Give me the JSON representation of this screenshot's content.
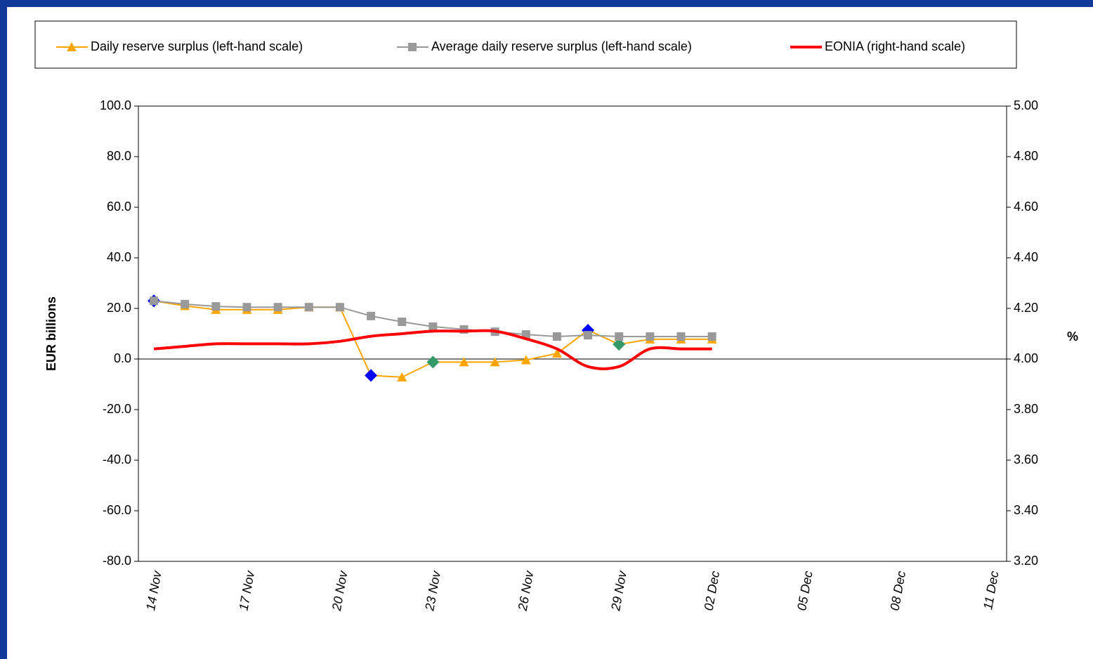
{
  "chart_data": {
    "type": "line",
    "y_label": "EUR billions",
    "y2_label": "%",
    "categories": [
      "14 Nov",
      null,
      null,
      "17 Nov",
      null,
      null,
      "20 Nov",
      null,
      null,
      "23 Nov",
      null,
      null,
      "26 Nov",
      null,
      null,
      "29 Nov",
      null,
      null,
      "02 Dec",
      null,
      null,
      "05 Dec",
      null,
      null,
      "08 Dec",
      null,
      null,
      "11 Dec"
    ],
    "ylim": [
      -80,
      100
    ],
    "yticks": [
      {
        "value": -80,
        "label": "-80.0"
      },
      {
        "value": -60,
        "label": "-60.0"
      },
      {
        "value": -40,
        "label": "-40.0"
      },
      {
        "value": -20,
        "label": "-20.0"
      },
      {
        "value": 0,
        "label": "0.0"
      },
      {
        "value": 20,
        "label": "20.0"
      },
      {
        "value": 40,
        "label": "40.0"
      },
      {
        "value": 60,
        "label": "60.0"
      },
      {
        "value": 80,
        "label": "80.0"
      },
      {
        "value": 100,
        "label": "100.0"
      }
    ],
    "y2lim": [
      3.2,
      5.0
    ],
    "y2ticks": [
      {
        "value": 3.2,
        "label": "3.20"
      },
      {
        "value": 3.4,
        "label": "3.40"
      },
      {
        "value": 3.6,
        "label": "3.60"
      },
      {
        "value": 3.8,
        "label": "3.80"
      },
      {
        "value": 4.0,
        "label": "4.00"
      },
      {
        "value": 4.2,
        "label": "4.20"
      },
      {
        "value": 4.4,
        "label": "4.40"
      },
      {
        "value": 4.6,
        "label": "4.60"
      },
      {
        "value": 4.8,
        "label": "4.80"
      },
      {
        "value": 5.0,
        "label": "5.00"
      }
    ],
    "legend": "top",
    "series": [
      {
        "name": "Daily reserve surplus (left-hand scale)",
        "color": "#ffa500",
        "marker": "triangle",
        "values": [
          23.0,
          21.0,
          19.5,
          19.5,
          19.5,
          20.5,
          20.5,
          -6.5,
          -7.2,
          -1.2,
          -1.2,
          -1.2,
          -0.4,
          2.2,
          11.4,
          5.8,
          7.8,
          7.8,
          7.8,
          null,
          null,
          null,
          null,
          null,
          null,
          null,
          null,
          null
        ],
        "marker_colors": [
          "#0000ff",
          null,
          null,
          null,
          null,
          null,
          null,
          "#0000ff",
          null,
          "#339966",
          null,
          null,
          null,
          null,
          "#0000ff",
          "#339966",
          null,
          null,
          null,
          null,
          null,
          null,
          null,
          null,
          null,
          null,
          null,
          null
        ]
      },
      {
        "name": "Average daily reserve surplus (left-hand scale)",
        "color": "#999999",
        "marker": "square",
        "values": [
          23.0,
          21.7,
          20.8,
          20.5,
          20.5,
          20.5,
          20.5,
          17.0,
          14.7,
          12.8,
          11.7,
          10.8,
          9.7,
          8.9,
          9.4,
          8.9,
          8.9,
          8.9,
          8.9,
          null,
          null,
          null,
          null,
          null,
          null,
          null,
          null,
          null
        ]
      },
      {
        "name": "EONIA (right-hand scale)",
        "color": "#ff0000",
        "axis": "y2",
        "smooth": true,
        "values": [
          4.04,
          4.05,
          4.06,
          4.06,
          4.06,
          4.06,
          4.07,
          4.09,
          4.1,
          4.11,
          4.11,
          4.11,
          4.08,
          4.04,
          3.97,
          3.97,
          4.04,
          4.04,
          4.04,
          null,
          null,
          null,
          null,
          null,
          null,
          null,
          null,
          null
        ]
      }
    ]
  }
}
